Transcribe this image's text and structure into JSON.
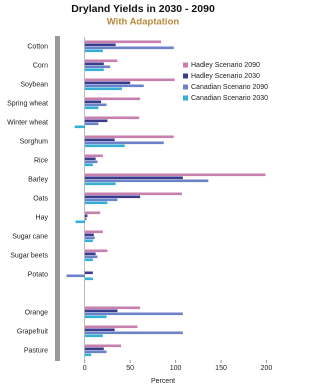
{
  "chart_data": {
    "type": "hbar",
    "title": "Dryland Yields in 2030 - 2090",
    "subtitle": "With Adaptation",
    "x_label": "Percent",
    "categories": [
      "Cotton",
      "Corn",
      "Soybean",
      "Spring wheat",
      "Winter wheat",
      "Sorghum",
      "Rice",
      "Barley",
      "Oats",
      "Hay",
      "Sugar cane",
      "Sugar beets",
      "Potato",
      null,
      "Orange",
      "Grapefruit",
      "Pasture"
    ],
    "series": [
      {
        "name": "Hadley Scenario 2090",
        "color": "#c77fae",
        "values": [
          84,
          36,
          99,
          61,
          60,
          98,
          20,
          199,
          107,
          17,
          20,
          25,
          0,
          null,
          61,
          58,
          40
        ]
      },
      {
        "name": "Hadley Scenario 2030",
        "color": "#3c3c8c",
        "values": [
          34,
          21,
          50,
          18,
          25,
          33,
          12,
          108,
          61,
          3,
          10,
          12,
          9,
          null,
          36,
          33,
          21
        ]
      },
      {
        "name": "Canadian Scenario 2090",
        "color": "#6b82c9",
        "values": [
          98,
          28,
          65,
          24,
          15,
          87,
          14,
          136,
          36,
          2,
          11,
          14,
          -20,
          null,
          108,
          108,
          24
        ]
      },
      {
        "name": "Canadian Scenario 2030",
        "color": "#35b0d4",
        "values": [
          20,
          21,
          41,
          15,
          -11,
          44,
          9,
          34,
          25,
          -10,
          9,
          9,
          9,
          null,
          24,
          20,
          7
        ]
      }
    ],
    "xlim": [
      -25,
      205
    ],
    "xticks": [
      0,
      50,
      100,
      150,
      200
    ],
    "legend": "upper right"
  }
}
